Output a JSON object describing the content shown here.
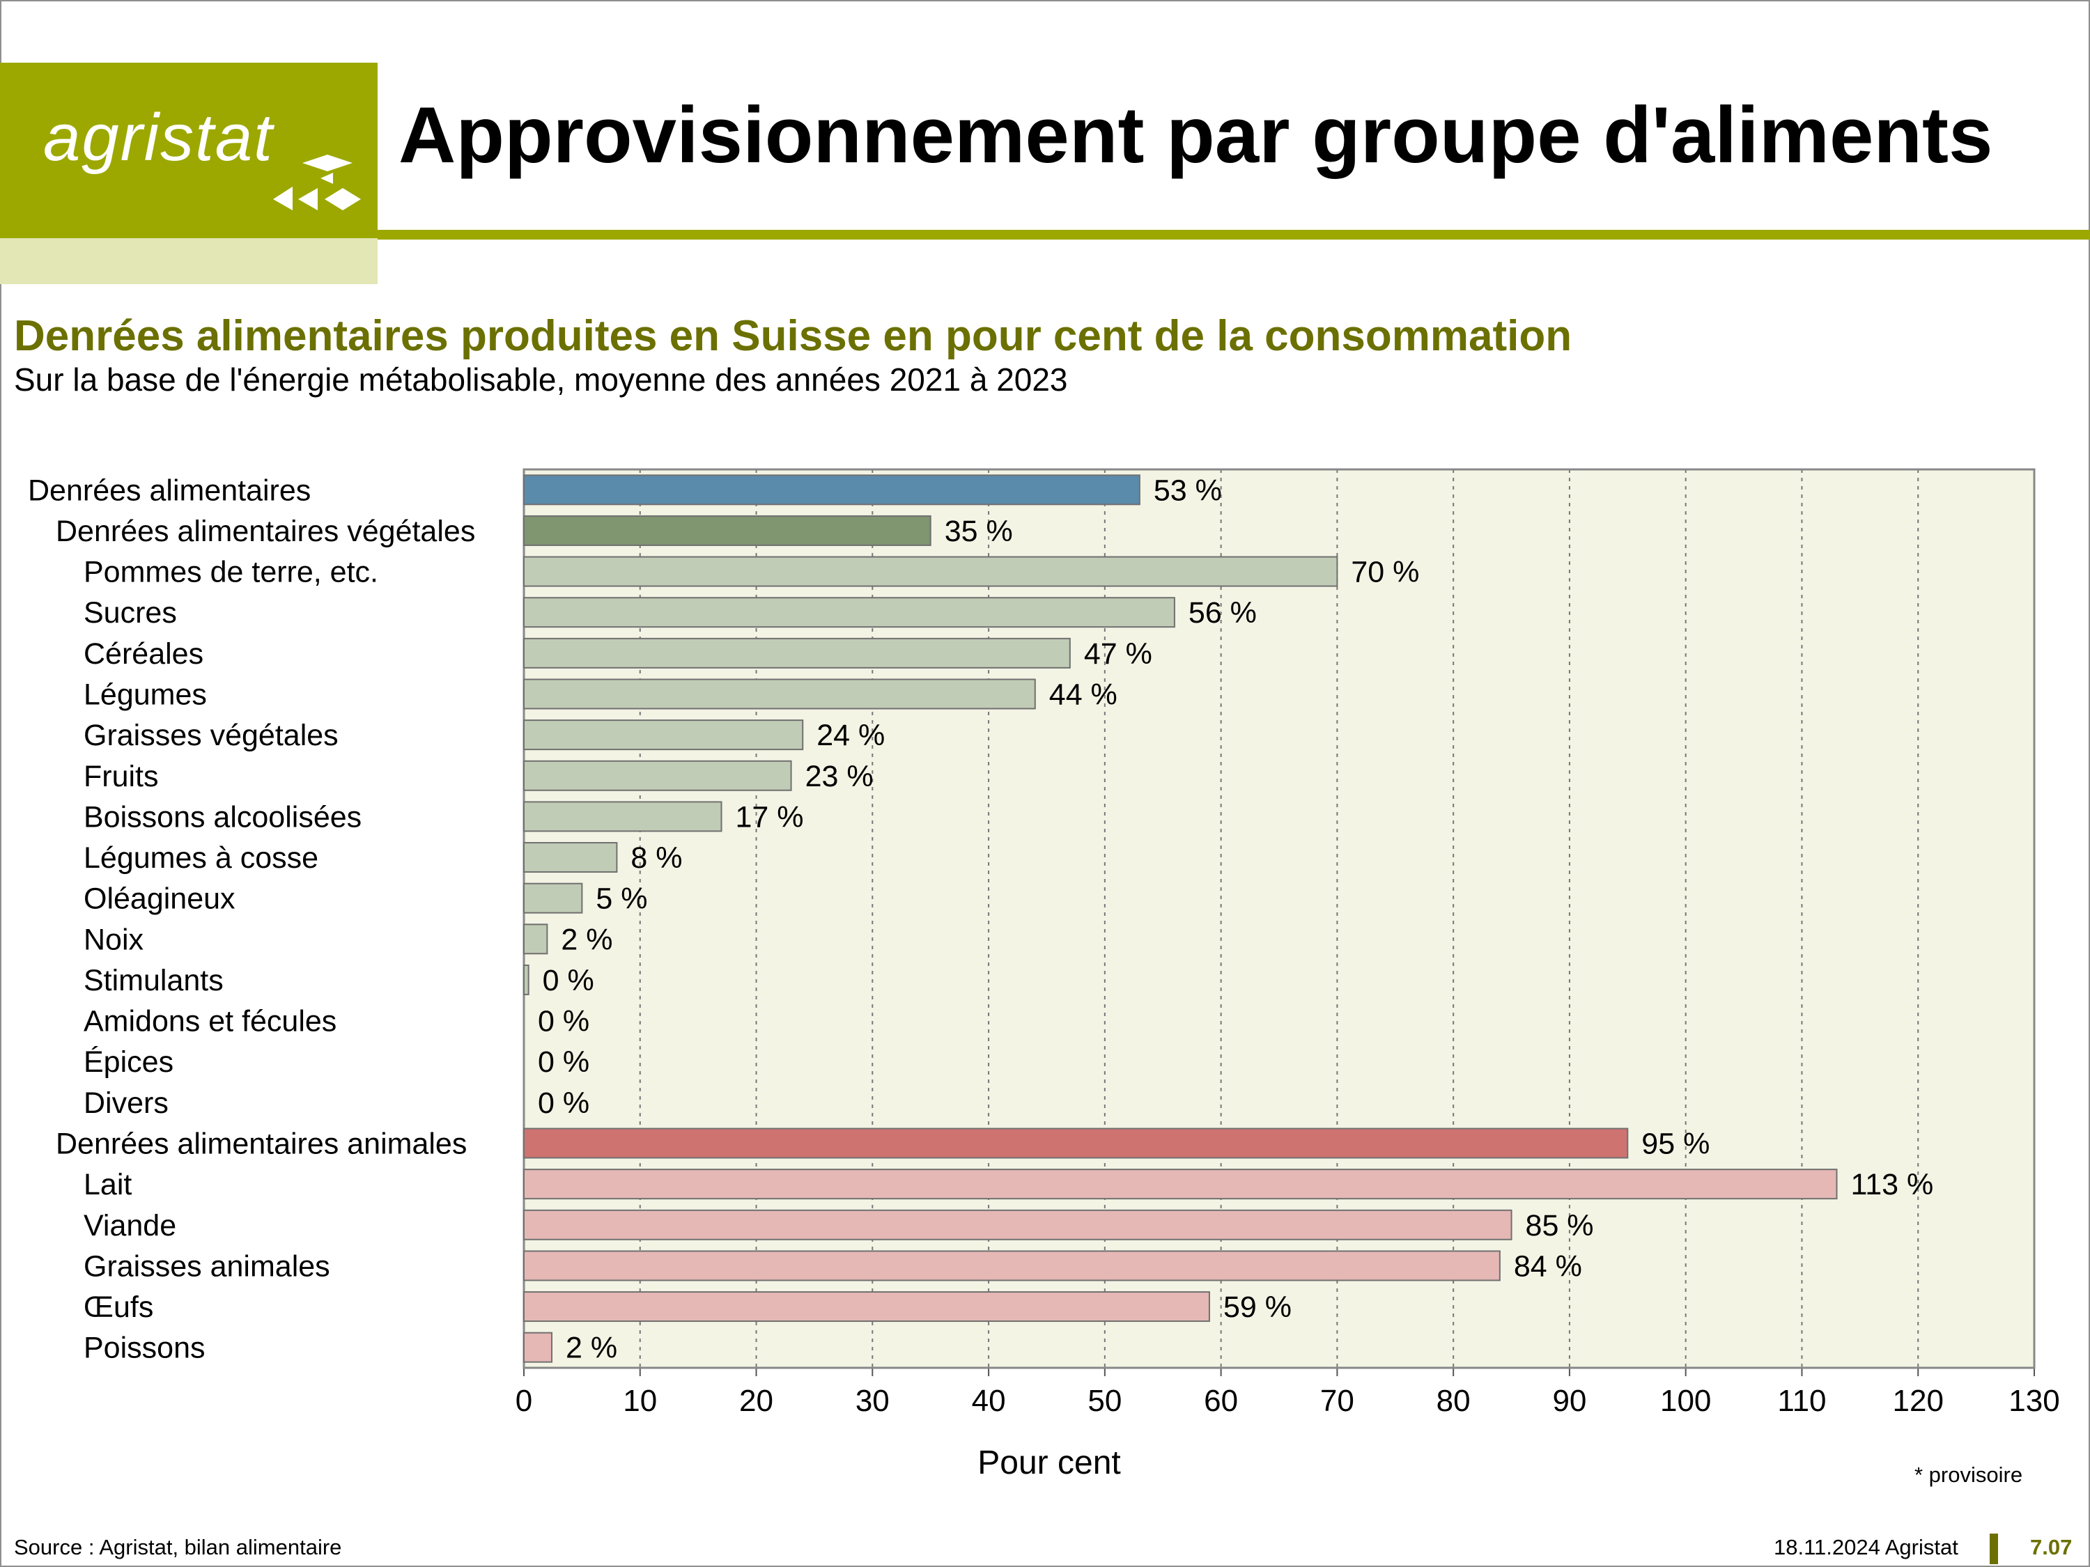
{
  "header": {
    "logo_text": "agristat",
    "title": "Approvisionnement par groupe d'aliments"
  },
  "chart_data": {
    "type": "bar",
    "orientation": "horizontal",
    "title": "Denrées alimentaires produites en Suisse en pour cent de la consommation",
    "subtitle": "Sur la base de l'énergie métabolisable, moyenne des années 2021 à 2023",
    "xlabel": "Pour cent",
    "ylabel": "",
    "xlim": [
      0,
      130
    ],
    "xticks": [
      0,
      10,
      20,
      30,
      40,
      50,
      60,
      70,
      80,
      90,
      100,
      110,
      120,
      130
    ],
    "grid": "vertical dotted",
    "value_suffix": " %",
    "categories": [
      {
        "label": "Denrées alimentaires",
        "value": 53,
        "level": 0,
        "group": "total"
      },
      {
        "label": "Denrées alimentaires végétales",
        "value": 35,
        "level": 1,
        "group": "vegetal-total"
      },
      {
        "label": "Pommes de terre, etc.",
        "value": 70,
        "level": 2,
        "group": "vegetal"
      },
      {
        "label": "Sucres",
        "value": 56,
        "level": 2,
        "group": "vegetal"
      },
      {
        "label": "Céréales",
        "value": 47,
        "level": 2,
        "group": "vegetal"
      },
      {
        "label": "Légumes",
        "value": 44,
        "level": 2,
        "group": "vegetal"
      },
      {
        "label": "Graisses végétales",
        "value": 24,
        "level": 2,
        "group": "vegetal"
      },
      {
        "label": "Fruits",
        "value": 23,
        "level": 2,
        "group": "vegetal"
      },
      {
        "label": "Boissons alcoolisées",
        "value": 17,
        "level": 2,
        "group": "vegetal"
      },
      {
        "label": "Légumes à cosse",
        "value": 8,
        "level": 2,
        "group": "vegetal"
      },
      {
        "label": "Oléagineux",
        "value": 5,
        "level": 2,
        "group": "vegetal"
      },
      {
        "label": "Noix",
        "value": 2,
        "level": 2,
        "group": "vegetal"
      },
      {
        "label": "Stimulants",
        "value": 0.4,
        "display": "0 %",
        "level": 2,
        "group": "vegetal"
      },
      {
        "label": "Amidons et fécules",
        "value": 0,
        "display": "0 %",
        "level": 2,
        "group": "vegetal"
      },
      {
        "label": "Épices",
        "value": 0,
        "display": "0 %",
        "level": 2,
        "group": "vegetal"
      },
      {
        "label": "Divers",
        "value": 0,
        "display": "0 %",
        "level": 2,
        "group": "vegetal"
      },
      {
        "label": "Denrées alimentaires animales",
        "value": 95,
        "level": 1,
        "group": "animal-total"
      },
      {
        "label": "Lait",
        "value": 113,
        "level": 2,
        "group": "animal"
      },
      {
        "label": "Viande",
        "value": 85,
        "level": 2,
        "group": "animal"
      },
      {
        "label": "Graisses animales",
        "value": 84,
        "level": 2,
        "group": "animal"
      },
      {
        "label": "Œufs",
        "value": 59,
        "level": 2,
        "group": "animal"
      },
      {
        "label": "Poissons",
        "value": 2.4,
        "display": "2 %",
        "level": 2,
        "group": "animal"
      }
    ],
    "colors": {
      "total": "#5b8bab",
      "vegetal-total": "#7f9670",
      "vegetal": "#c0ccb5",
      "animal-total": "#cf7370",
      "animal": "#e5b8b5",
      "plot_bg": "#f3f4e4",
      "bar_edge": "#707070"
    }
  },
  "note": "* provisoire",
  "footer": {
    "source": "Source : Agristat, bilan alimentaire",
    "date": "18.11.2024 Agristat",
    "page": "7.07"
  }
}
